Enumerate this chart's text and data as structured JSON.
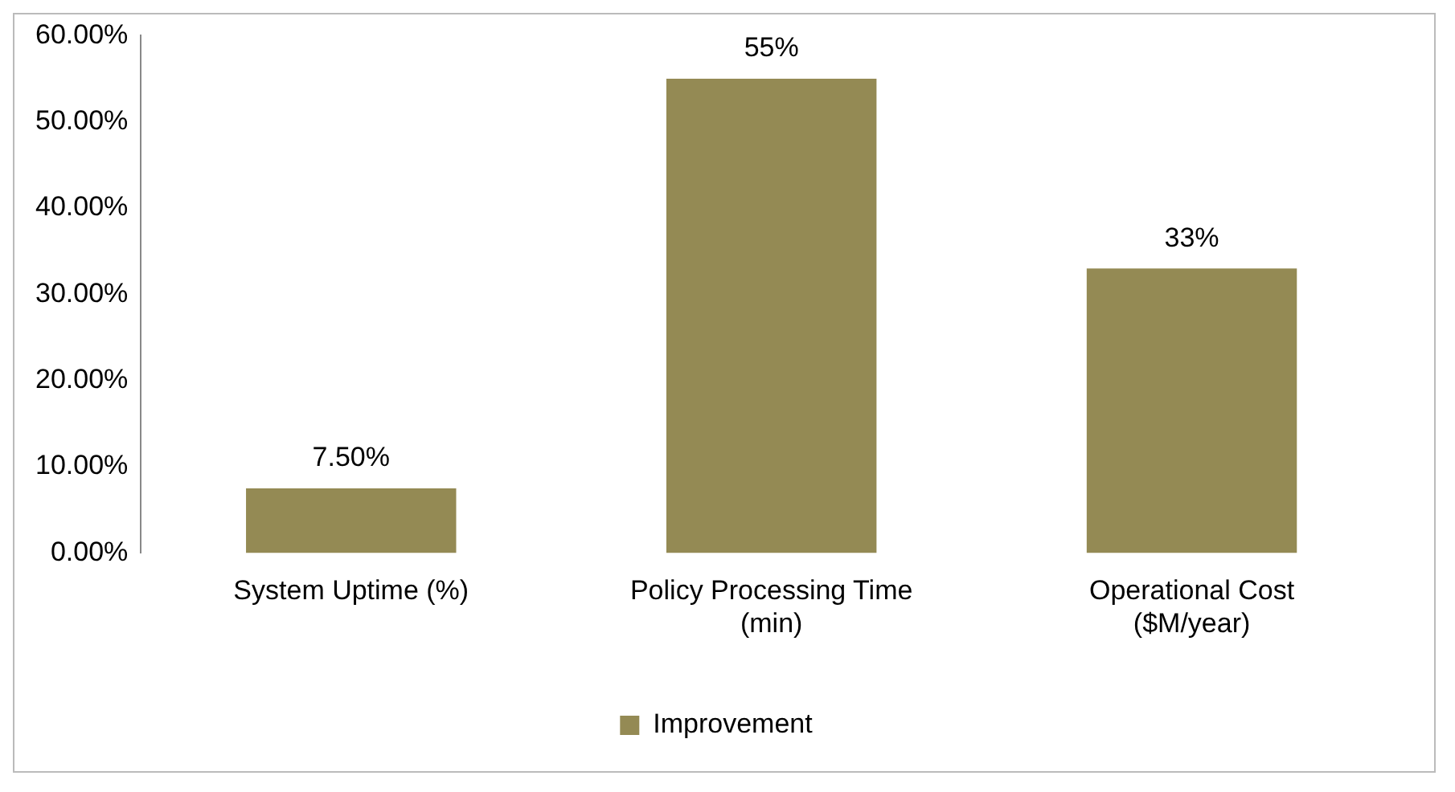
{
  "chart_data": {
    "type": "bar",
    "categories": [
      "System Uptime (%)",
      "Policy Processing Time (min)",
      "Operational Cost ($M/year)"
    ],
    "series": [
      {
        "name": "Improvement",
        "color": "#948a54",
        "values": [
          7.5,
          55,
          33
        ],
        "value_labels": [
          "7.50%",
          "55%",
          "33%"
        ]
      }
    ],
    "ylim": [
      0,
      60
    ],
    "yticks": [
      {
        "value": 0,
        "label": "0.00%"
      },
      {
        "value": 10,
        "label": "10.00%"
      },
      {
        "value": 20,
        "label": "20.00%"
      },
      {
        "value": 30,
        "label": "30.00%"
      },
      {
        "value": 40,
        "label": "40.00%"
      },
      {
        "value": 50,
        "label": "50.00%"
      },
      {
        "value": 60,
        "label": "60.00%"
      }
    ],
    "grid": false,
    "legend": "bottom"
  }
}
